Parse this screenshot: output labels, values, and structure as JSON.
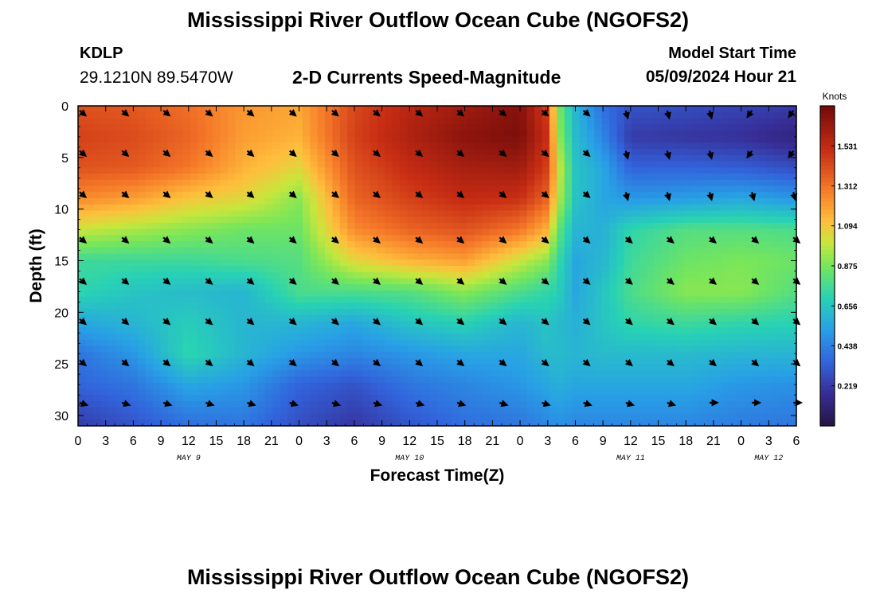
{
  "header": {
    "title": "Mississippi River Outflow Ocean Cube (NGOFS2)",
    "station": "KDLP",
    "coords": "29.1210N  89.5470W",
    "subtitle": "2-D Currents Speed-Magnitude",
    "model_start_label": "Model Start Time",
    "model_start_value": "05/09/2024 Hour 21"
  },
  "footer": {
    "title": "Mississippi River Outflow Ocean Cube (NGOFS2)"
  },
  "chart_data": {
    "type": "heatmap",
    "title": "2-D Currents Speed-Magnitude",
    "xlabel": "Forecast Time(Z)",
    "ylabel": "Depth (ft)",
    "x_range_hours": [
      0,
      78
    ],
    "ylim": [
      0,
      31
    ],
    "y_inverted": true,
    "x_tick_labels": [
      "0",
      "3",
      "6",
      "9",
      "12",
      "15",
      "18",
      "21",
      "0",
      "3",
      "6",
      "9",
      "12",
      "15",
      "18",
      "21",
      "0",
      "3",
      "6",
      "9",
      "12",
      "15",
      "18",
      "21",
      "0",
      "3",
      "6"
    ],
    "date_labels": [
      {
        "text": "MAY 9",
        "hour": 12
      },
      {
        "text": "MAY 10",
        "hour": 36
      },
      {
        "text": "MAY 11",
        "hour": 60
      },
      {
        "text": "MAY 12",
        "hour": 75
      }
    ],
    "y_ticks": [
      0,
      5,
      10,
      15,
      20,
      25,
      30
    ],
    "colorbar": {
      "unit": "Knots",
      "ticks": [
        "1.531",
        "1.312",
        "1.094",
        "0.875",
        "0.656",
        "0.438",
        "0.219"
      ],
      "tick_values": [
        1.531,
        1.312,
        1.094,
        0.875,
        0.656,
        0.438,
        0.219
      ],
      "range": [
        0,
        1.75
      ]
    },
    "arrow_times": [
      0,
      4.6,
      9.1,
      13.7,
      18.2,
      22.8,
      27.4,
      31.9,
      36.5,
      41,
      45.6,
      50.2,
      54.7,
      59.3,
      63.8,
      68.4,
      73,
      77.5
    ],
    "arrow_depths": [
      0.3,
      4.2,
      8.2,
      12.6,
      16.6,
      20.5,
      24.5,
      28.6
    ],
    "contour_depths": [
      0,
      3,
      6,
      9,
      12,
      15,
      18,
      21,
      24,
      27,
      31
    ],
    "contour_times": [
      0,
      6,
      12,
      18,
      24,
      30,
      36,
      42,
      48,
      51,
      52,
      54,
      57,
      60,
      66,
      72,
      78
    ],
    "contour_speeds": [
      [
        1.4,
        1.38,
        1.32,
        1.22,
        1.18,
        1.43,
        1.55,
        1.62,
        1.7,
        1.45,
        0.9,
        0.6,
        0.38,
        0.3,
        0.28,
        0.25,
        0.22
      ],
      [
        1.45,
        1.42,
        1.35,
        1.2,
        1.15,
        1.45,
        1.58,
        1.68,
        1.72,
        1.5,
        0.95,
        0.62,
        0.45,
        0.22,
        0.2,
        0.18,
        0.12
      ],
      [
        1.4,
        1.38,
        1.3,
        1.15,
        1.05,
        1.4,
        1.52,
        1.6,
        1.62,
        1.45,
        1.05,
        0.65,
        0.55,
        0.35,
        0.35,
        0.33,
        0.28
      ],
      [
        1.25,
        1.2,
        1.1,
        1.05,
        0.9,
        1.35,
        1.45,
        1.52,
        1.5,
        1.35,
        1.0,
        0.65,
        0.55,
        0.5,
        0.52,
        0.55,
        0.5
      ],
      [
        1.0,
        0.95,
        0.9,
        0.85,
        0.85,
        1.25,
        1.35,
        1.4,
        1.3,
        1.15,
        0.85,
        0.6,
        0.58,
        0.72,
        0.8,
        0.8,
        0.78
      ],
      [
        0.75,
        0.75,
        0.75,
        0.78,
        0.8,
        1.05,
        1.15,
        1.2,
        1.0,
        0.9,
        0.75,
        0.55,
        0.6,
        0.75,
        0.85,
        0.88,
        0.85
      ],
      [
        0.72,
        0.65,
        0.62,
        0.6,
        0.78,
        0.78,
        0.8,
        0.9,
        0.78,
        0.72,
        0.7,
        0.55,
        0.65,
        0.78,
        0.9,
        0.9,
        0.8
      ],
      [
        0.55,
        0.6,
        0.68,
        0.6,
        0.6,
        0.55,
        0.65,
        0.7,
        0.6,
        0.65,
        0.62,
        0.58,
        0.65,
        0.72,
        0.75,
        0.72,
        0.7
      ],
      [
        0.4,
        0.5,
        0.72,
        0.6,
        0.5,
        0.45,
        0.5,
        0.55,
        0.55,
        0.62,
        0.62,
        0.6,
        0.62,
        0.62,
        0.62,
        0.6,
        0.6
      ],
      [
        0.35,
        0.4,
        0.55,
        0.5,
        0.35,
        0.3,
        0.4,
        0.45,
        0.5,
        0.55,
        0.58,
        0.55,
        0.55,
        0.55,
        0.55,
        0.5,
        0.48
      ],
      [
        0.22,
        0.3,
        0.38,
        0.4,
        0.28,
        0.2,
        0.3,
        0.38,
        0.4,
        0.45,
        0.48,
        0.45,
        0.45,
        0.45,
        0.45,
        0.42,
        0.4
      ]
    ]
  }
}
